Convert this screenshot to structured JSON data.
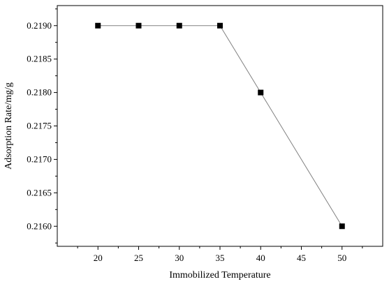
{
  "chart_data": {
    "type": "line",
    "title": "",
    "xlabel": "Immobilized Temperature",
    "ylabel": "Adsorption Rate/mg/g",
    "x": [
      20,
      25,
      30,
      35,
      40,
      50
    ],
    "series": [
      {
        "values": [
          0.219,
          0.219,
          0.219,
          0.219,
          0.218,
          0.216
        ]
      }
    ],
    "xlim": [
      15,
      55
    ],
    "ylim": [
      0.2157,
      0.2193
    ],
    "xticks": [
      20,
      25,
      30,
      35,
      40,
      45,
      50
    ],
    "xtick_labels": [
      "20",
      "25",
      "30",
      "35",
      "40",
      "45",
      "50"
    ],
    "yticks": [
      0.216,
      0.2165,
      0.217,
      0.2175,
      0.218,
      0.2185,
      0.219
    ],
    "ytick_labels": [
      "0.2160",
      "0.2165",
      "0.2170",
      "0.2175",
      "0.2180",
      "0.2185",
      "0.2190"
    ],
    "grid": false,
    "legend": "none",
    "marker": "square",
    "colors": {
      "line": "#808080",
      "marker": "#000000",
      "axis": "#000000"
    }
  }
}
